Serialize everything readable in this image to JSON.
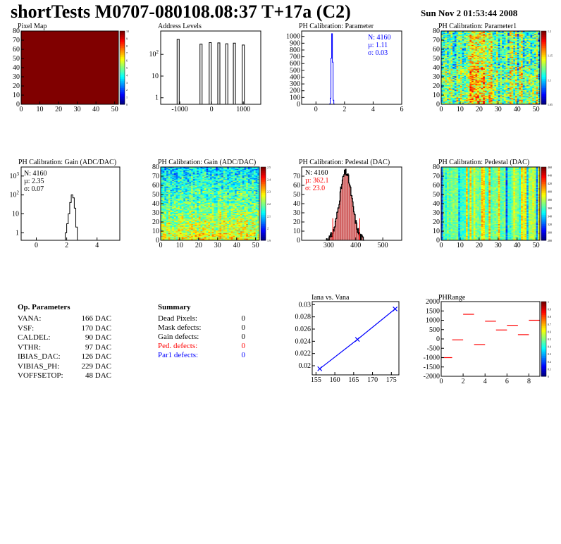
{
  "header": {
    "title": "shortTests M0707-080108.08:37 T+17a (C2)",
    "date": "Sun Nov  2 01:53:44 2008"
  },
  "colors": {
    "red": "#ff0000",
    "blue": "#0000ff",
    "histo": "#000000"
  },
  "chart_data": [
    {
      "type": "heatmap",
      "title": "Pixel Map",
      "xlim": [
        0,
        52
      ],
      "ylim": [
        0,
        80
      ],
      "xticks": [
        "0",
        "10",
        "20",
        "30",
        "40",
        "50"
      ],
      "yticks": [
        "0",
        "10",
        "20",
        "30",
        "40",
        "50",
        "60",
        "70",
        "80"
      ],
      "uniform_value": 10,
      "zticks": [
        "0",
        "1",
        "2",
        "3",
        "4",
        "5",
        "6",
        "7",
        "8",
        "9",
        "10"
      ]
    },
    {
      "type": "bar",
      "title": "Address Levels",
      "log_y": true,
      "xlim": [
        -1600,
        1550
      ],
      "xticks": [
        "-1000",
        "0",
        "1000"
      ],
      "yticks": [
        "1",
        "10",
        "10^2"
      ],
      "peaks": [
        {
          "x": -1050,
          "y": 500
        },
        {
          "x": -330,
          "y": 300
        },
        {
          "x": -40,
          "y": 350
        },
        {
          "x": 230,
          "y": 340
        },
        {
          "x": 480,
          "y": 310
        },
        {
          "x": 720,
          "y": 330
        },
        {
          "x": 1000,
          "y": 270
        }
      ]
    },
    {
      "type": "bar",
      "title": "PH Calibration: Parameter",
      "xlim": [
        -1,
        6
      ],
      "ylim": [
        0,
        1080
      ],
      "xticks": [
        "0",
        "2",
        "4",
        "6"
      ],
      "yticks": [
        "0",
        "100",
        "200",
        "300",
        "400",
        "500",
        "600",
        "700",
        "800",
        "900",
        "1000"
      ],
      "bins_x": [
        0.95,
        1.0,
        1.05,
        1.1,
        1.15,
        1.2,
        1.25
      ],
      "bins_y": [
        6,
        90,
        680,
        1040,
        620,
        60,
        4
      ],
      "stats": {
        "n": "N: 4160",
        "mean": "µ: 1.11",
        "sigma": "σ: 0.03"
      }
    },
    {
      "type": "heatmap",
      "title": "PH Calibration: Parameter1",
      "xlim": [
        0,
        52
      ],
      "ylim": [
        0,
        80
      ],
      "xticks": [
        "0",
        "10",
        "20",
        "30",
        "40",
        "50"
      ],
      "yticks": [
        "0",
        "10",
        "20",
        "30",
        "40",
        "50",
        "60",
        "70",
        "80"
      ],
      "zticks": [
        "1.05",
        "1.1",
        "1.15",
        "1.2"
      ]
    },
    {
      "type": "bar",
      "title": "PH Calibration: Gain (ADC/DAC)",
      "log_y": true,
      "xlim": [
        -1,
        5.5
      ],
      "xticks": [
        "0",
        "2",
        "4"
      ],
      "yticks": [
        "1",
        "10",
        "10^2",
        "10^3"
      ],
      "bins_x": [
        1.9,
        2.0,
        2.1,
        2.2,
        2.3,
        2.4,
        2.5,
        2.6
      ],
      "bins_y": [
        1,
        3,
        10,
        40,
        100,
        70,
        20,
        2
      ],
      "stats": {
        "n": "N: 4160",
        "mean": "µ: 2.35",
        "sigma": "σ: 0.07"
      }
    },
    {
      "type": "heatmap",
      "title": "PH Calibration: Gain (ADC/DAC)",
      "xlim": [
        0,
        52
      ],
      "ylim": [
        0,
        80
      ],
      "xticks": [
        "0",
        "10",
        "20",
        "30",
        "40",
        "50"
      ],
      "yticks": [
        "0",
        "10",
        "20",
        "30",
        "40",
        "50",
        "60",
        "70",
        "80"
      ],
      "zticks": [
        "1.9",
        "2",
        "2.1",
        "2.2",
        "2.3",
        "2.4",
        "2.5"
      ]
    },
    {
      "type": "bar",
      "title": "PH Calibration: Pedestal (DAC)",
      "xlim": [
        200,
        570
      ],
      "ylim": [
        0,
        80
      ],
      "xticks": [
        "300",
        "400",
        "500"
      ],
      "yticks": [
        "0",
        "10",
        "20",
        "30",
        "40",
        "50",
        "60",
        "70"
      ],
      "mean": 362.1,
      "sigma": 23.0,
      "peak": 74,
      "cut_lines": [
        315,
        415
      ],
      "stats": {
        "n": "N: 4160",
        "mean": "µ: 362.1",
        "sigma": "σ: 23.0"
      }
    },
    {
      "type": "heatmap",
      "title": "PH Calibration: Pedestal (DAC)",
      "xlim": [
        0,
        52
      ],
      "ylim": [
        0,
        80
      ],
      "xticks": [
        "0",
        "10",
        "20",
        "30",
        "40",
        "50"
      ],
      "yticks": [
        "0",
        "10",
        "20",
        "30",
        "40",
        "50",
        "60",
        "70",
        "80"
      ],
      "zticks": [
        "280",
        "300",
        "320",
        "340",
        "360",
        "380",
        "400",
        "420",
        "440",
        "460"
      ]
    },
    {
      "type": "line",
      "title": "Iana vs. Vana",
      "xlim": [
        154,
        177
      ],
      "ylim": [
        0.0185,
        0.0305
      ],
      "xticks": [
        "155",
        "160",
        "165",
        "170",
        "175"
      ],
      "yticks": [
        "0.02",
        "0.022",
        "0.024",
        "0.026",
        "0.028",
        "0.03"
      ],
      "x": [
        156,
        166,
        176
      ],
      "y": [
        0.0195,
        0.0243,
        0.0293
      ]
    },
    {
      "type": "scatter",
      "title": "PHRange",
      "xlim": [
        0,
        9
      ],
      "ylim": [
        -2000,
        2000
      ],
      "xticks": [
        "0",
        "2",
        "4",
        "6",
        "8"
      ],
      "yticks": [
        "-2000",
        "-1500",
        "-1000",
        "-500",
        "0",
        "500",
        "1000",
        "1500",
        "2000"
      ],
      "zticks": [
        "0",
        "0.1",
        "0.2",
        "0.3",
        "0.4",
        "0.5",
        "0.6",
        "0.7",
        "0.8",
        "0.9",
        "1"
      ],
      "x": [
        0.5,
        1.5,
        2.5,
        3.5,
        4.5,
        5.5,
        6.5,
        7.5,
        8.5
      ],
      "y": [
        -1000,
        -50,
        1320,
        -300,
        950,
        480,
        730,
        230,
        1000
      ]
    }
  ],
  "op_params": {
    "title": "Op. Parameters",
    "rows": [
      {
        "name": "VANA:",
        "value": "166 DAC"
      },
      {
        "name": "VSF:",
        "value": "170 DAC"
      },
      {
        "name": "CALDEL:",
        "value": "90 DAC"
      },
      {
        "name": "VTHR:",
        "value": "97 DAC"
      },
      {
        "name": "IBIAS_DAC:",
        "value": "126 DAC"
      },
      {
        "name": "VIBIAS_PH:",
        "value": "229 DAC"
      },
      {
        "name": "VOFFSETOP:",
        "value": "48 DAC"
      }
    ]
  },
  "summary": {
    "title": "Summary",
    "rows": [
      {
        "name": "Dead Pixels:",
        "value": "0",
        "color": "#000000"
      },
      {
        "name": "Mask defects:",
        "value": "0",
        "color": "#000000"
      },
      {
        "name": "Gain defects:",
        "value": "0",
        "color": "#000000"
      },
      {
        "name": "Ped. defects:",
        "value": "0",
        "color": "#ff0000"
      },
      {
        "name": "Par1 defects:",
        "value": "0",
        "color": "#0000ff"
      }
    ]
  }
}
